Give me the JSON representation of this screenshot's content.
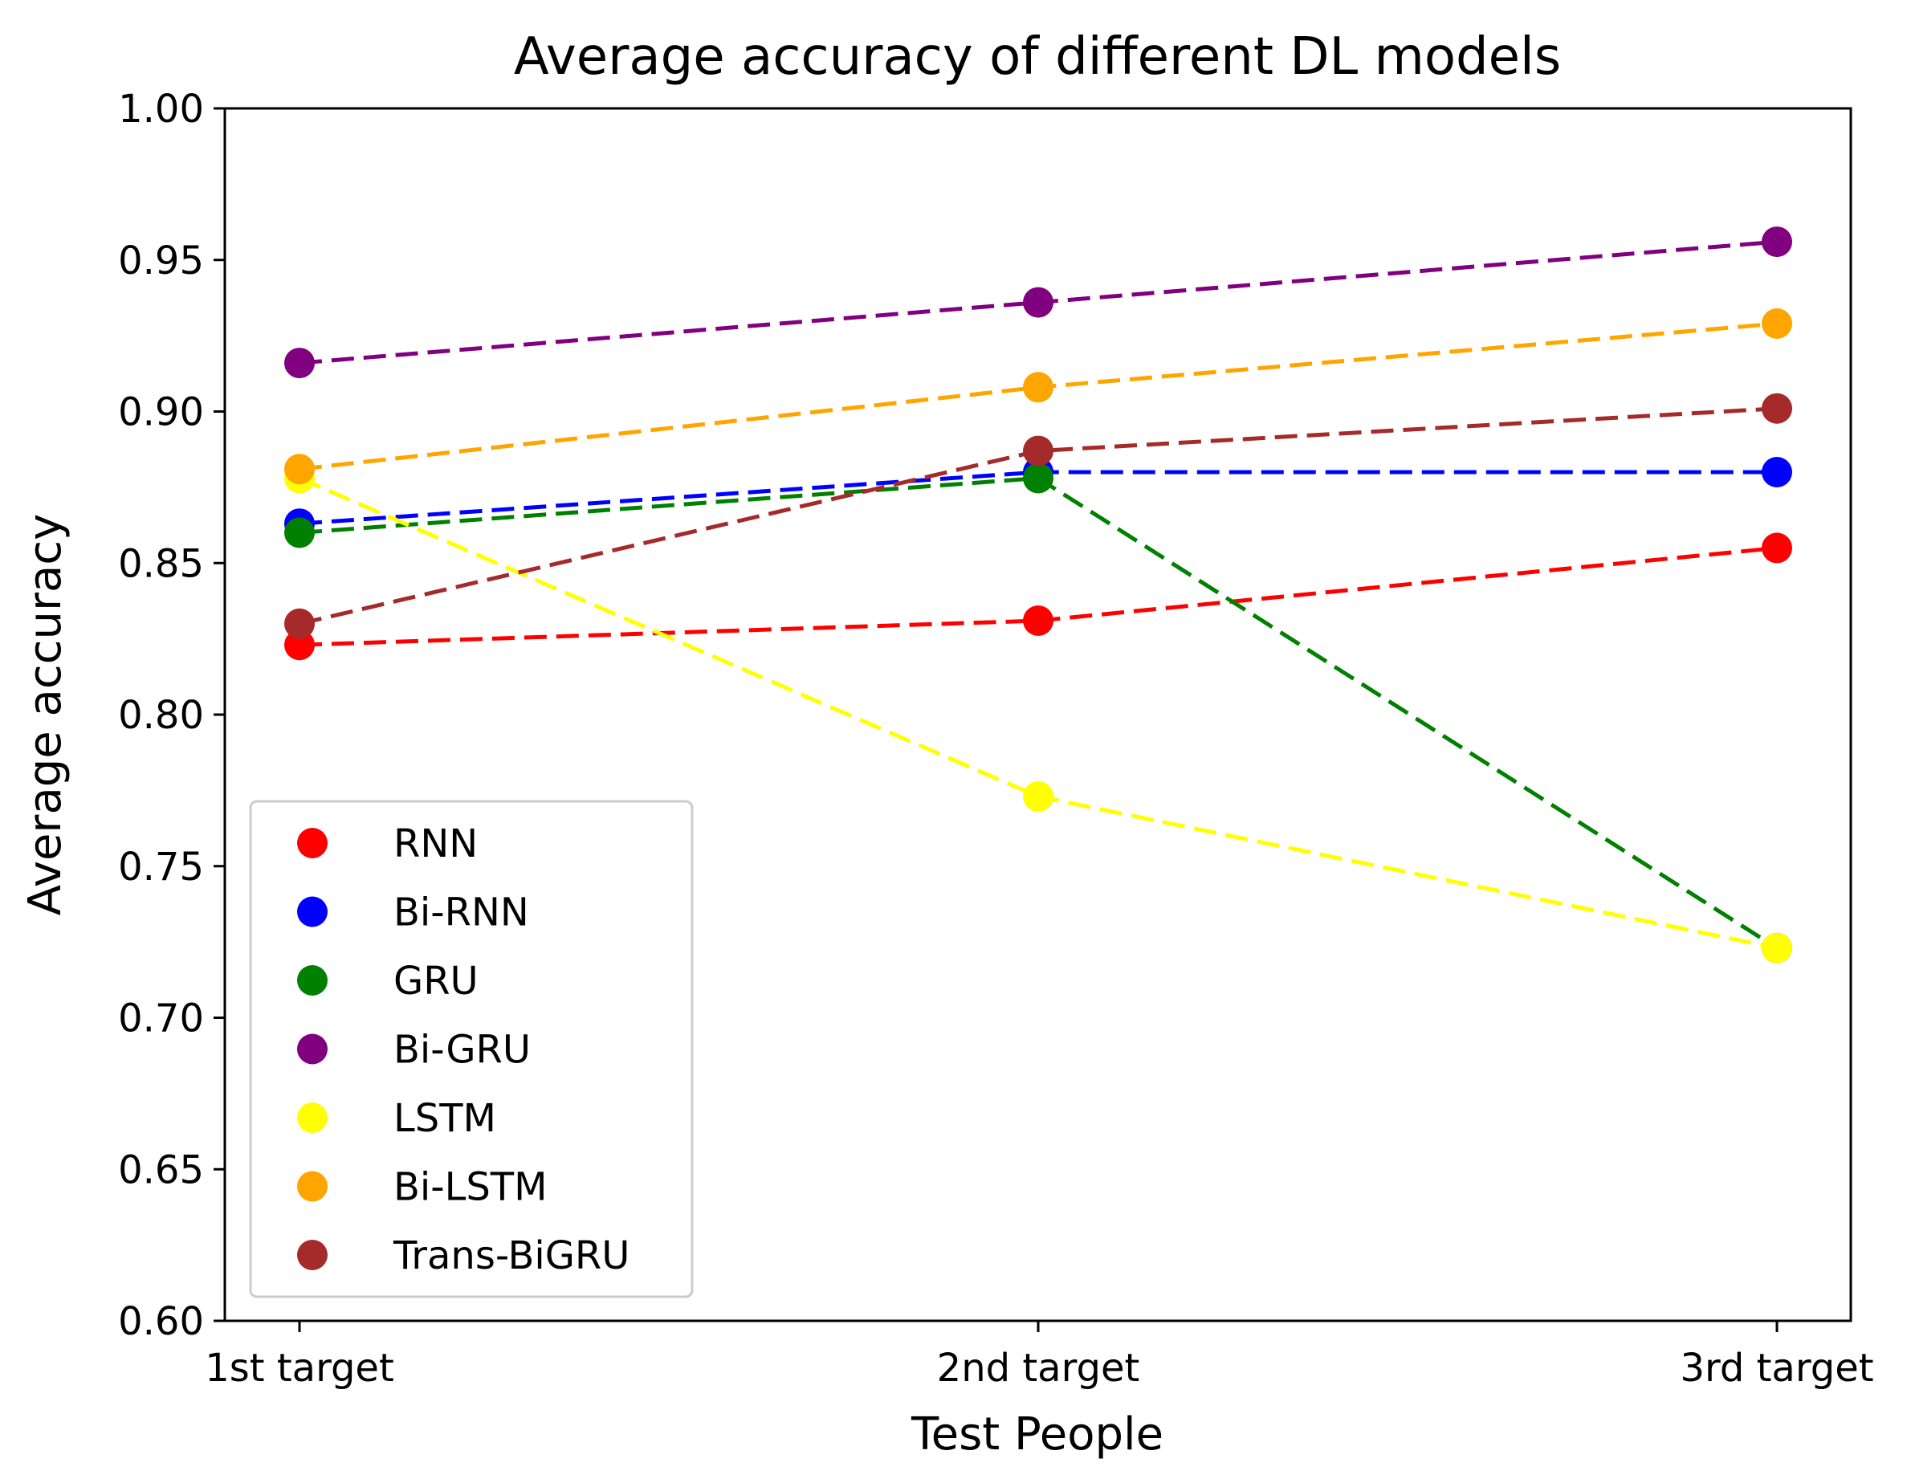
{
  "chart_data": {
    "type": "line",
    "title": "Average accuracy of different DL models",
    "xlabel": "Test People",
    "ylabel": "Average accuracy",
    "categories": [
      "1st target",
      "2nd target",
      "3rd target"
    ],
    "ylim": [
      0.6,
      1.0
    ],
    "yticks": [
      "0.60",
      "0.65",
      "0.70",
      "0.75",
      "0.80",
      "0.85",
      "0.90",
      "0.95",
      "1.00"
    ],
    "grid": false,
    "legend_position": "lower-left",
    "series": [
      {
        "name": "RNN",
        "color": "#ff0000",
        "values": [
          0.823,
          0.831,
          0.855
        ]
      },
      {
        "name": "Bi-RNN",
        "color": "#0000ff",
        "values": [
          0.863,
          0.88,
          0.88
        ]
      },
      {
        "name": "GRU",
        "color": "#008000",
        "values": [
          0.86,
          0.878,
          0.723
        ]
      },
      {
        "name": "Bi-GRU",
        "color": "#800080",
        "values": [
          0.916,
          0.936,
          0.956
        ]
      },
      {
        "name": "LSTM",
        "color": "#ffff00",
        "values": [
          0.878,
          0.773,
          0.723
        ]
      },
      {
        "name": "Bi-LSTM",
        "color": "#ffa500",
        "values": [
          0.881,
          0.908,
          0.929
        ]
      },
      {
        "name": "Trans-BiGRU",
        "color": "#a52a2a",
        "values": [
          0.83,
          0.887,
          0.901
        ]
      }
    ]
  }
}
